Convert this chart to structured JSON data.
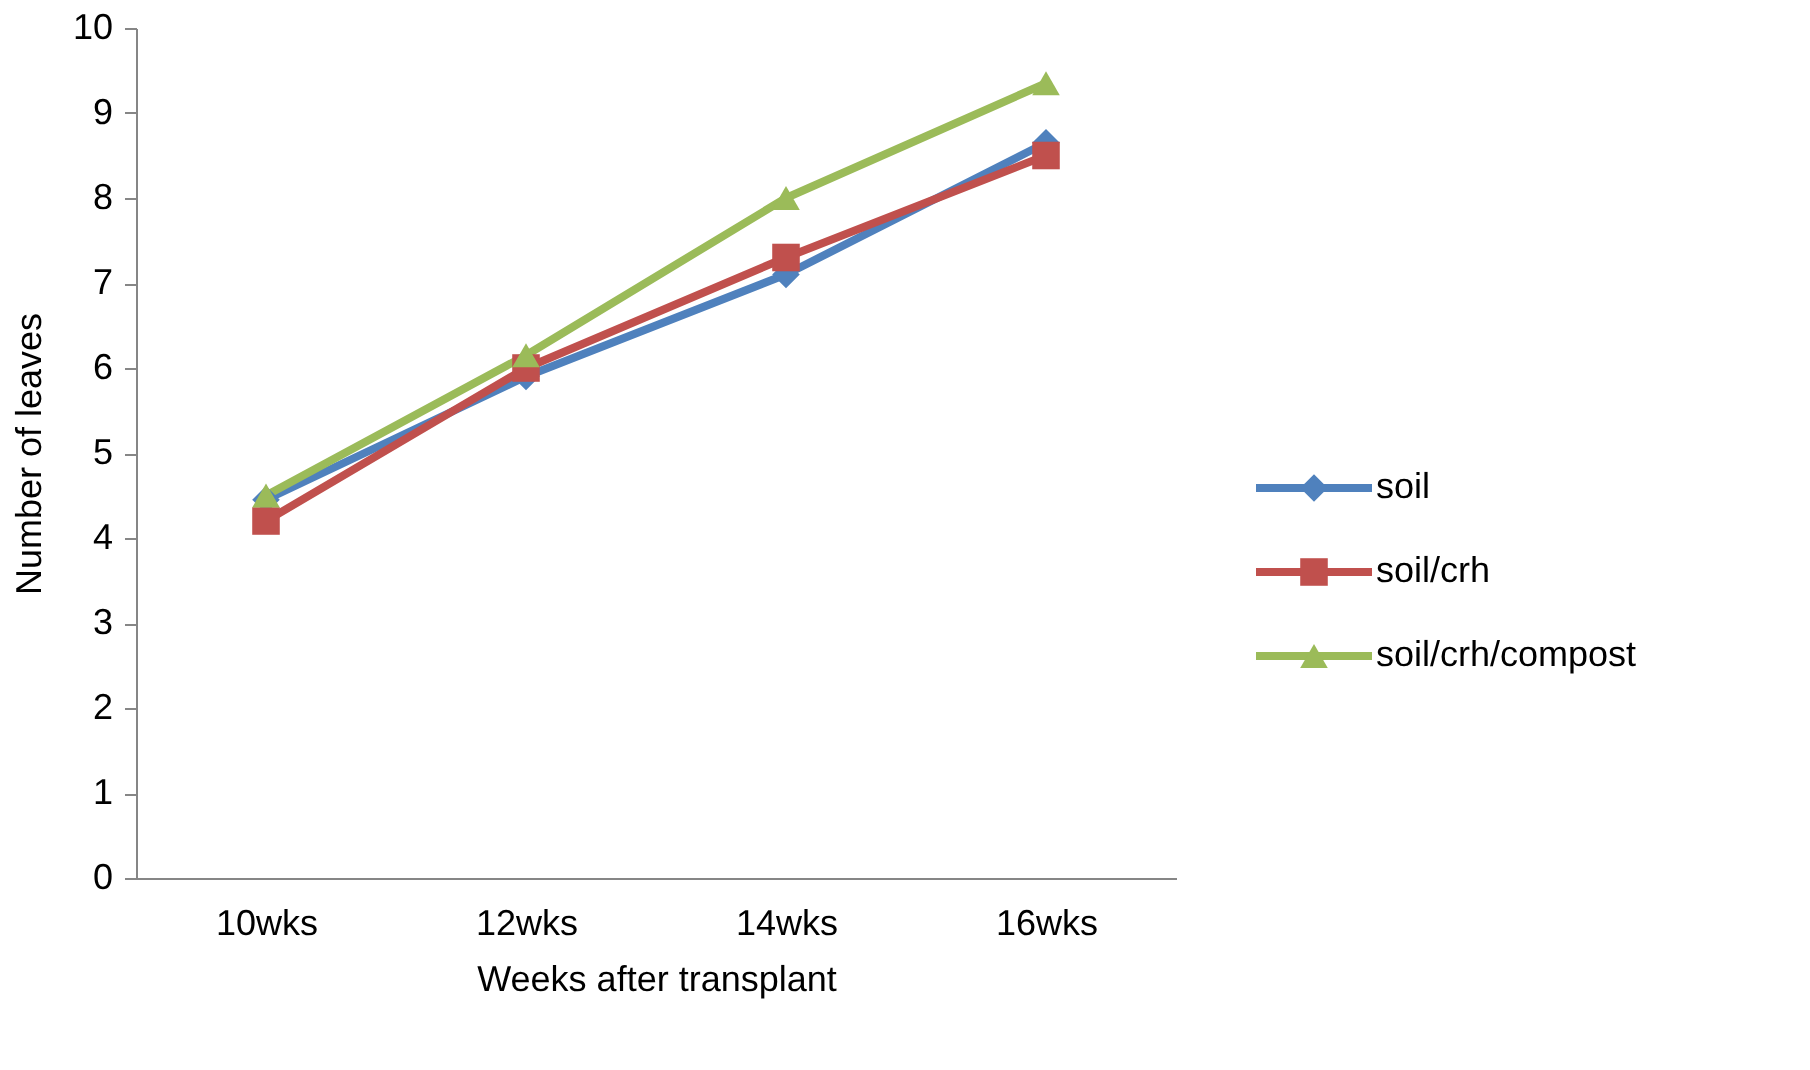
{
  "chart_data": {
    "type": "line",
    "xlabel": "Weeks after transplant",
    "ylabel": "Number of leaves",
    "categories": [
      "10wks",
      "12wks",
      "14wks",
      "16wks"
    ],
    "series": [
      {
        "name": "soil",
        "color": "#4f81bd",
        "marker": "diamond",
        "values": [
          4.45,
          5.9,
          7.1,
          8.65
        ]
      },
      {
        "name": "soil/crh",
        "color": "#c0504d",
        "marker": "square",
        "values": [
          4.2,
          6.0,
          7.3,
          8.5
        ]
      },
      {
        "name": "soil/crh/compost",
        "color": "#9bbb59",
        "marker": "triangle",
        "values": [
          4.5,
          6.15,
          8.0,
          9.35
        ]
      }
    ],
    "ylim": [
      0,
      10
    ],
    "yticks": [
      0,
      1,
      2,
      3,
      4,
      5,
      6,
      7,
      8,
      9,
      10
    ],
    "grid": false,
    "legend": "right",
    "line_style": "solid"
  }
}
